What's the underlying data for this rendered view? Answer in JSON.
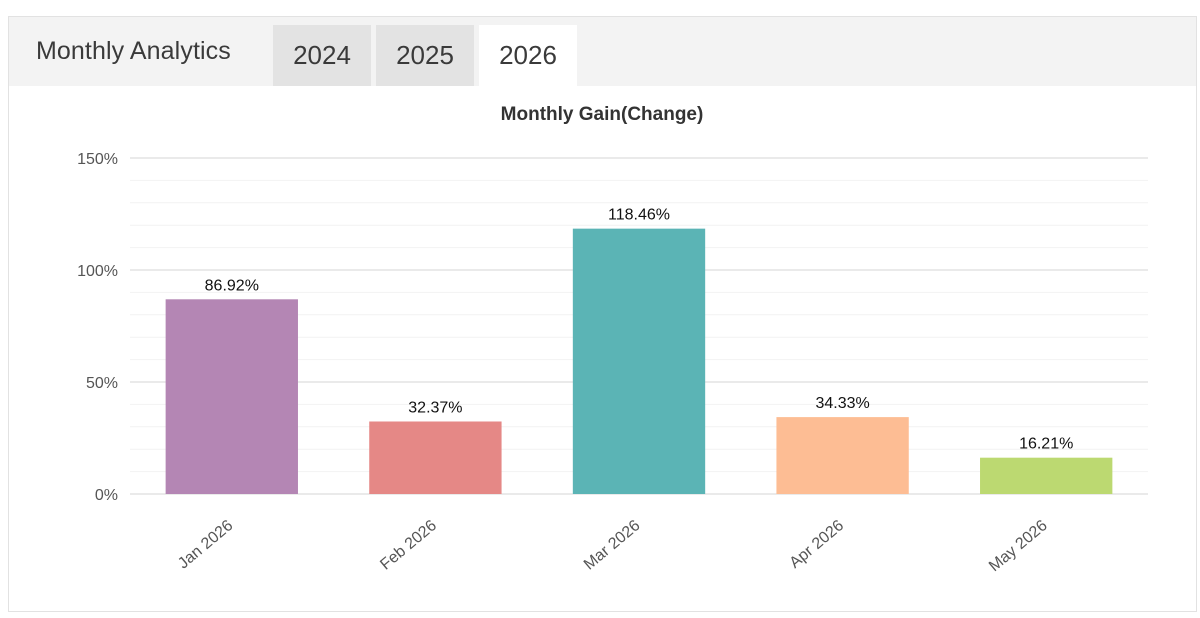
{
  "header": {
    "title": "Monthly Analytics",
    "tabs": [
      {
        "label": "2024",
        "active": false
      },
      {
        "label": "2025",
        "active": false
      },
      {
        "label": "2026",
        "active": true
      }
    ]
  },
  "chart_data": {
    "type": "bar",
    "title": "Monthly Gain(Change)",
    "categories": [
      "Jan 2026",
      "Feb 2026",
      "Mar 2026",
      "Apr 2026",
      "May 2026"
    ],
    "values": [
      86.92,
      32.37,
      118.46,
      34.33,
      16.21
    ],
    "data_labels": [
      "86.92%",
      "32.37%",
      "118.46%",
      "34.33%",
      "16.21%"
    ],
    "colors": [
      "#b486b4",
      "#e58886",
      "#5bb4b5",
      "#fdbd94",
      "#bcd971"
    ],
    "ylim": [
      0,
      150
    ],
    "yticks": [
      0,
      50,
      100,
      150
    ],
    "ytick_labels": [
      "0%",
      "50%",
      "100%",
      "150%"
    ],
    "grid": true,
    "xlabel": "",
    "ylabel": ""
  }
}
